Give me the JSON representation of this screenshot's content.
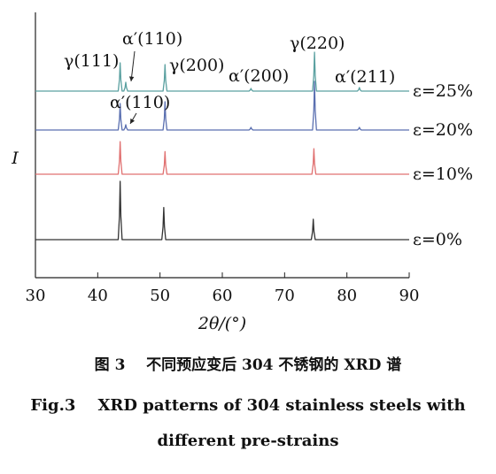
{
  "chart_data": {
    "type": "line",
    "xlabel": "2θ/(°)",
    "ylabel": "I",
    "xlim": [
      30,
      90
    ],
    "xticks": [
      30,
      40,
      50,
      60,
      70,
      80,
      90
    ],
    "grid": false,
    "series": [
      {
        "name": "ε=0%",
        "color": "#333333",
        "peaks": [
          {
            "x": 43.6,
            "intensity": 1.0
          },
          {
            "x": 50.6,
            "intensity": 0.55
          },
          {
            "x": 74.6,
            "intensity": 0.35
          }
        ]
      },
      {
        "name": "ε=10%",
        "color": "#e07070",
        "peaks": [
          {
            "x": 43.6,
            "intensity": 0.46
          },
          {
            "x": 50.8,
            "intensity": 0.32
          },
          {
            "x": 74.7,
            "intensity": 0.36
          }
        ]
      },
      {
        "name": "ε=20%",
        "color": "#5a6fb0",
        "peaks": [
          {
            "x": 43.6,
            "intensity": 0.3
          },
          {
            "x": 44.5,
            "intensity": 0.06
          },
          {
            "x": 50.8,
            "intensity": 0.32
          },
          {
            "x": 64.6,
            "intensity": 0.03
          },
          {
            "x": 74.8,
            "intensity": 0.55
          },
          {
            "x": 82.0,
            "intensity": 0.03
          }
        ]
      },
      {
        "name": "ε=25%",
        "color": "#5aa0a0",
        "peaks": [
          {
            "x": 43.6,
            "intensity": 0.32
          },
          {
            "x": 44.5,
            "intensity": 0.1
          },
          {
            "x": 50.8,
            "intensity": 0.3
          },
          {
            "x": 64.6,
            "intensity": 0.03
          },
          {
            "x": 74.8,
            "intensity": 0.44
          },
          {
            "x": 82.0,
            "intensity": 0.04
          }
        ]
      }
    ],
    "annotations": [
      {
        "text": "γ(111)",
        "series": "ε=25%"
      },
      {
        "text": "α′(110)",
        "series": "ε=25%"
      },
      {
        "text": "γ(200)",
        "series": "ε=25%"
      },
      {
        "text": "α′(200)",
        "series": "ε=25%"
      },
      {
        "text": "γ(220)",
        "series": "ε=25%"
      },
      {
        "text": "α′(211)",
        "series": "ε=25%"
      },
      {
        "text": "α′(110)",
        "series": "ε=20%"
      }
    ]
  },
  "caption": {
    "cn": "图 3    不同预应变后 304 不锈钢的 XRD 谱",
    "en_line1": "Fig.3    XRD patterns of 304 stainless steels with",
    "en_line2": "different pre-strains"
  }
}
